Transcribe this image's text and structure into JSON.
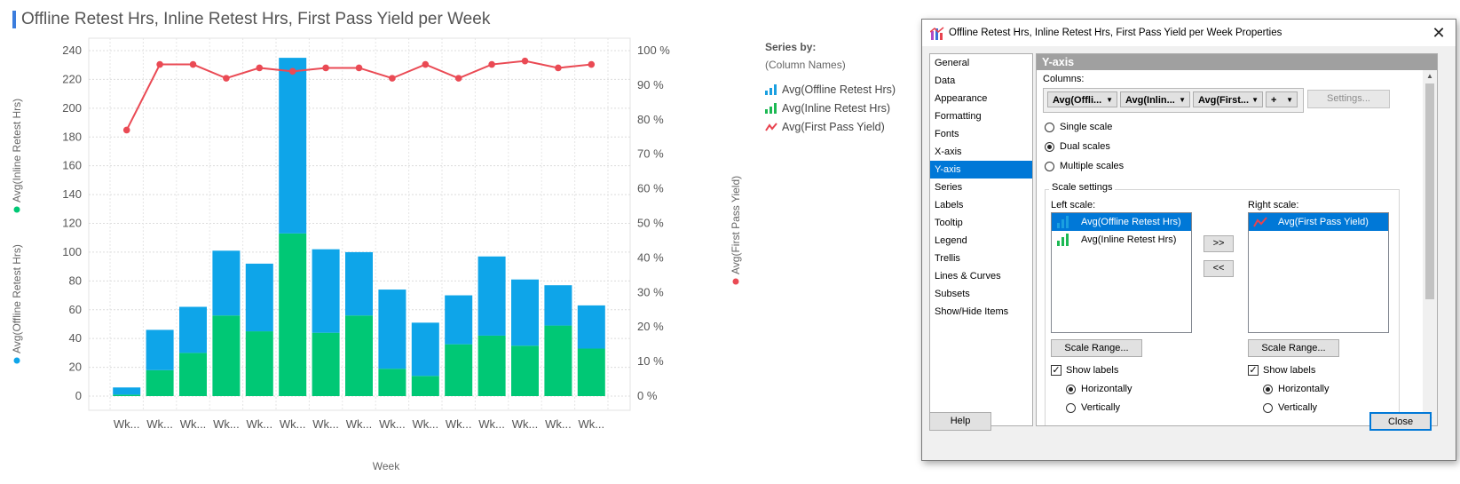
{
  "chart": {
    "title": "Offline Retest Hrs, Inline Retest Hrs, First Pass Yield per Week",
    "left_axis_labels": [
      "Avg(Inline Retest Hrs)",
      "Avg(Offline Retest Hrs)"
    ],
    "right_axis_label": "Avg(First Pass Yield)",
    "x_axis_label": "Week"
  },
  "legend": {
    "title": "Series by:",
    "subtitle": "(Column Names)",
    "items": [
      {
        "label": "Avg(Offline Retest Hrs)",
        "color": "#1a9fe0",
        "icon": "bar-chart-icon"
      },
      {
        "label": "Avg(Inline Retest Hrs)",
        "color": "#1db954",
        "icon": "bar-chart-icon"
      },
      {
        "label": "Avg(First Pass Yield)",
        "color": "#e8434f",
        "icon": "line-chart-icon"
      }
    ]
  },
  "colors": {
    "offline": "#0ea5e9",
    "inline": "#00c875",
    "yield": "#ea4a54"
  },
  "chart_data": {
    "type": "bar",
    "stacked": true,
    "categories": [
      "Wk...",
      "Wk...",
      "Wk...",
      "Wk...",
      "Wk...",
      "Wk...",
      "Wk...",
      "Wk...",
      "Wk...",
      "Wk...",
      "Wk...",
      "Wk...",
      "Wk...",
      "Wk...",
      "Wk..."
    ],
    "series": [
      {
        "name": "Avg(Inline Retest Hrs)",
        "axis": "left",
        "values": [
          1,
          18,
          30,
          56,
          45,
          113,
          44,
          56,
          19,
          14,
          36,
          42,
          35,
          49,
          33
        ]
      },
      {
        "name": "Avg(Offline Retest Hrs)",
        "axis": "left",
        "values": [
          5,
          28,
          32,
          45,
          47,
          122,
          58,
          44,
          55,
          37,
          34,
          55,
          46,
          28,
          30
        ]
      },
      {
        "name": "Avg(First Pass Yield)",
        "axis": "right",
        "type": "line",
        "values": [
          77,
          96,
          96,
          92,
          95,
          94,
          95,
          95,
          92,
          96,
          92,
          96,
          97,
          95,
          96
        ]
      }
    ],
    "left_ylim": [
      0,
      240
    ],
    "left_yticks": [
      0,
      20,
      40,
      60,
      80,
      100,
      120,
      140,
      160,
      180,
      200,
      220,
      240
    ],
    "right_ylim": [
      0,
      100
    ],
    "right_yticks": [
      "0 %",
      "10 %",
      "20 %",
      "30 %",
      "40 %",
      "50 %",
      "60 %",
      "70 %",
      "80 %",
      "90 %",
      "100 %"
    ],
    "xlabel": "Week",
    "grid": true
  },
  "dialog": {
    "title": "Offline Retest Hrs, Inline Retest Hrs, First Pass Yield per Week Properties",
    "nav_items": [
      "General",
      "Data",
      "Appearance",
      "Formatting",
      "Fonts",
      "X-axis",
      "Y-axis",
      "Series",
      "Labels",
      "Tooltip",
      "Legend",
      "Trellis",
      "Lines & Curves",
      "Subsets",
      "Show/Hide Items"
    ],
    "selected_nav": "Y-axis",
    "panel_title": "Y-axis",
    "columns_label": "Columns:",
    "column_selectors": [
      "Avg(Offli...",
      "Avg(Inlin...",
      "Avg(First...",
      "+"
    ],
    "settings_button": "Settings...",
    "scale_options": [
      {
        "label": "Single scale",
        "checked": false
      },
      {
        "label": "Dual scales",
        "checked": true
      },
      {
        "label": "Multiple scales",
        "checked": false
      }
    ],
    "scale_settings_label": "Scale settings",
    "left_scale_label": "Left scale:",
    "right_scale_label": "Right scale:",
    "left_scale_items": [
      {
        "label": "Avg(Offline Retest Hrs)",
        "selected": true
      },
      {
        "label": "Avg(Inline Retest Hrs)",
        "selected": false
      }
    ],
    "right_scale_items": [
      {
        "label": "Avg(First Pass Yield)",
        "selected": true
      }
    ],
    "move_right_button": ">>",
    "move_left_button": "<<",
    "scale_range_button": "Scale Range...",
    "show_labels": "Show labels",
    "horizontally": "Horizontally",
    "vertically_partial": "Vertically",
    "help_button": "Help",
    "close_button": "Close"
  }
}
